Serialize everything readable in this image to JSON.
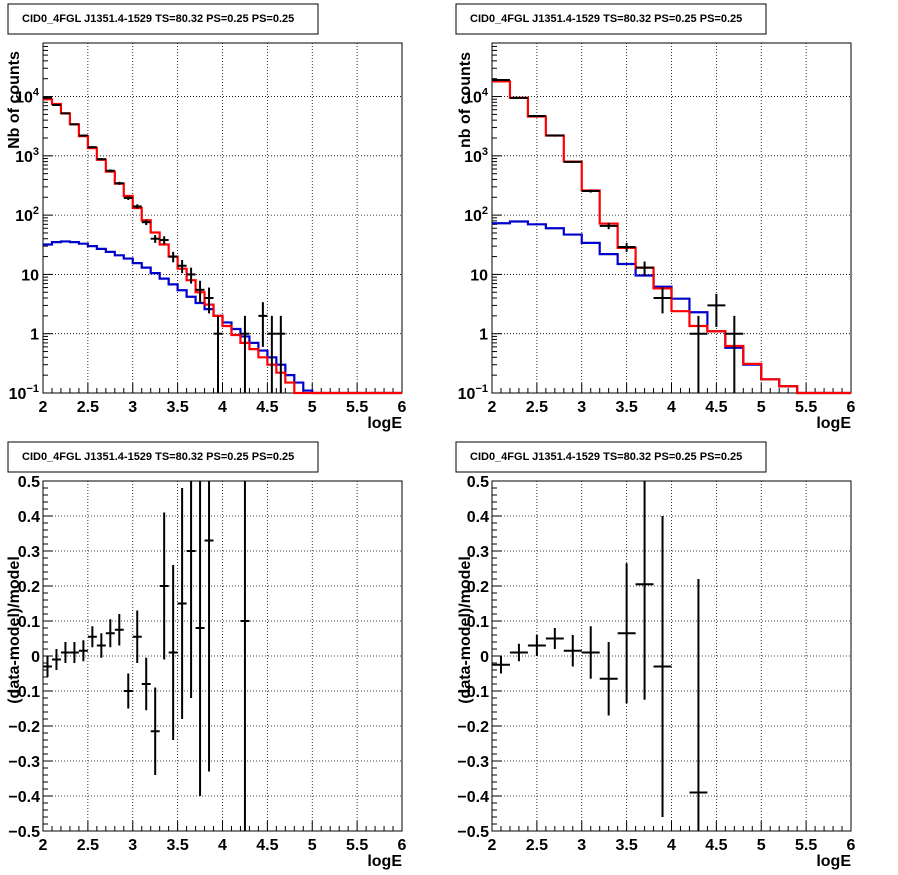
{
  "colors": {
    "data": "#000000",
    "total_model": "#ff0000",
    "component": "#0000cc",
    "grid": "#000000"
  },
  "chart_data": [
    {
      "type": "line",
      "title": "CID0_4FGL J1351.4-1529 TS=80.32 PS=0.25 PS=0.25",
      "xlabel": "logE",
      "ylabel": "Nb of counts",
      "xlim": [
        2,
        6
      ],
      "ylim": [
        0.1,
        80000
      ],
      "yscale": "log",
      "grid": true,
      "xticks": [
        "2",
        "2.5",
        "3",
        "3.5",
        "4",
        "4.5",
        "5",
        "5.5",
        "6"
      ],
      "yticks": [
        {
          "base": "10",
          "exp": "−1",
          "v": 0.1
        },
        {
          "base": "1",
          "exp": "",
          "v": 1
        },
        {
          "base": "10",
          "exp": "",
          "v": 10
        },
        {
          "base": "10",
          "exp": "2",
          "v": 100
        },
        {
          "base": "10",
          "exp": "3",
          "v": 1000
        },
        {
          "base": "10",
          "exp": "4",
          "v": 10000
        }
      ],
      "bin_edges": [
        2.0,
        2.1,
        2.2,
        2.3,
        2.4,
        2.5,
        2.6,
        2.7,
        2.8,
        2.9,
        3.0,
        3.1,
        3.2,
        3.3,
        3.4,
        3.5,
        3.6,
        3.7,
        3.8,
        3.9,
        4.0,
        4.1,
        4.2,
        4.3,
        4.4,
        4.5,
        4.6,
        4.7,
        4.8,
        4.9,
        5.0,
        5.1,
        5.2,
        5.3,
        5.4,
        5.5,
        5.6,
        5.7,
        5.8,
        5.9,
        6.0
      ],
      "series": [
        {
          "role": "total_model",
          "values": [
            9000,
            7500,
            5200,
            3400,
            2150,
            1350,
            860,
            540,
            340,
            210,
            132,
            82,
            51,
            32,
            20,
            12.5,
            8,
            5,
            3.1,
            2.0,
            1.35,
            0.95,
            0.7,
            0.55,
            0.4,
            0.3,
            0.22,
            0.15,
            0.1,
            0.1,
            0.1,
            0.1,
            0.1,
            0.1,
            0.1,
            0.1,
            0.1,
            0.1,
            0.1,
            0.1
          ]
        },
        {
          "role": "component",
          "values": [
            32,
            35,
            36,
            35,
            33,
            30,
            27,
            24,
            21,
            18.5,
            15.5,
            13,
            10.5,
            8.5,
            6.8,
            5.4,
            4.2,
            3.3,
            2.6,
            2.0,
            1.55,
            1.2,
            0.9,
            0.7,
            0.52,
            0.4,
            0.3,
            0.2,
            0.15,
            0.11,
            0.09,
            0.09,
            0.09,
            0.09,
            0.09,
            0.09,
            0.09,
            0.09,
            0.09,
            0.09
          ]
        }
      ],
      "points": [
        {
          "x": 2.05,
          "y": 9500,
          "lo": 9300,
          "hi": 9700
        },
        {
          "x": 2.15,
          "y": 7200,
          "lo": 7050,
          "hi": 7350
        },
        {
          "x": 2.25,
          "y": 5200,
          "lo": 5070,
          "hi": 5330
        },
        {
          "x": 2.35,
          "y": 3400,
          "lo": 3300,
          "hi": 3500
        },
        {
          "x": 2.45,
          "y": 2200,
          "lo": 2120,
          "hi": 2280
        },
        {
          "x": 2.55,
          "y": 1400,
          "lo": 1340,
          "hi": 1460
        },
        {
          "x": 2.65,
          "y": 880,
          "lo": 840,
          "hi": 920
        },
        {
          "x": 2.75,
          "y": 560,
          "lo": 530,
          "hi": 590
        },
        {
          "x": 2.85,
          "y": 345,
          "lo": 325,
          "hi": 365
        },
        {
          "x": 2.95,
          "y": 195,
          "lo": 180,
          "hi": 210
        },
        {
          "x": 3.05,
          "y": 140,
          "lo": 128,
          "hi": 152
        },
        {
          "x": 3.15,
          "y": 76,
          "lo": 68,
          "hi": 84
        },
        {
          "x": 3.25,
          "y": 40,
          "lo": 34,
          "hi": 46
        },
        {
          "x": 3.35,
          "y": 38,
          "lo": 32,
          "hi": 44
        },
        {
          "x": 3.45,
          "y": 20,
          "lo": 16,
          "hi": 24
        },
        {
          "x": 3.55,
          "y": 14,
          "lo": 10.5,
          "hi": 17.5
        },
        {
          "x": 3.65,
          "y": 10,
          "lo": 7,
          "hi": 13
        },
        {
          "x": 3.75,
          "y": 5.5,
          "lo": 3.3,
          "hi": 7.8
        },
        {
          "x": 3.85,
          "y": 4,
          "lo": 2.2,
          "hi": 6
        },
        {
          "x": 3.95,
          "y": 1,
          "lo": 0.1,
          "hi": 2
        },
        {
          "x": 4.25,
          "y": 1,
          "lo": 0.1,
          "hi": 2
        },
        {
          "x": 4.45,
          "y": 2,
          "lo": 0.6,
          "hi": 3.4
        },
        {
          "x": 4.55,
          "y": 1,
          "lo": 0.1,
          "hi": 2
        },
        {
          "x": 4.65,
          "y": 1,
          "lo": 0.1,
          "hi": 2
        }
      ]
    },
    {
      "type": "line",
      "title": "CID0_4FGL J1351.4-1529 TS=80.32 PS=0.25 PS=0.25",
      "xlabel": "logE",
      "ylabel": "nb of counts",
      "xlim": [
        2,
        6
      ],
      "ylim": [
        0.1,
        80000
      ],
      "yscale": "log",
      "grid": true,
      "xticks": [
        "2",
        "2.5",
        "3",
        "3.5",
        "4",
        "4.5",
        "5",
        "5.5",
        "6"
      ],
      "yticks": [
        {
          "base": "10",
          "exp": "−1",
          "v": 0.1
        },
        {
          "base": "1",
          "exp": "",
          "v": 1
        },
        {
          "base": "10",
          "exp": "",
          "v": 10
        },
        {
          "base": "10",
          "exp": "2",
          "v": 100
        },
        {
          "base": "10",
          "exp": "3",
          "v": 1000
        },
        {
          "base": "10",
          "exp": "4",
          "v": 10000
        }
      ],
      "bin_edges": [
        2.0,
        2.2,
        2.4,
        2.6,
        2.8,
        3.0,
        3.2,
        3.4,
        3.6,
        3.8,
        4.0,
        4.2,
        4.4,
        4.6,
        4.8,
        5.0,
        5.2,
        5.4,
        5.6,
        5.8,
        6.0
      ],
      "series": [
        {
          "role": "total_model",
          "values": [
            18000,
            9500,
            4600,
            2200,
            800,
            260,
            72,
            28,
            13,
            5.8,
            2.4,
            1.35,
            1.1,
            0.62,
            0.31,
            0.17,
            0.13,
            0.1,
            0.1,
            0.1
          ]
        },
        {
          "role": "component",
          "values": [
            73,
            78,
            70,
            60,
            47,
            34,
            22,
            15,
            9.6,
            6.2,
            3.9,
            2.3,
            1.1,
            0.58,
            0.3,
            0.17,
            0.13,
            0.1,
            0.1,
            0.1
          ]
        }
      ],
      "points": [
        {
          "x": 2.1,
          "y": 19000,
          "lo": 18700,
          "hi": 19300
        },
        {
          "x": 2.3,
          "y": 9500,
          "lo": 9300,
          "hi": 9700
        },
        {
          "x": 2.5,
          "y": 4700,
          "lo": 4560,
          "hi": 4840
        },
        {
          "x": 2.7,
          "y": 2200,
          "lo": 2110,
          "hi": 2290
        },
        {
          "x": 2.9,
          "y": 790,
          "lo": 760,
          "hi": 820
        },
        {
          "x": 3.1,
          "y": 255,
          "lo": 240,
          "hi": 270
        },
        {
          "x": 3.3,
          "y": 66,
          "lo": 58,
          "hi": 74
        },
        {
          "x": 3.5,
          "y": 29,
          "lo": 24,
          "hi": 34
        },
        {
          "x": 3.7,
          "y": 13,
          "lo": 9.5,
          "hi": 16.5
        },
        {
          "x": 3.9,
          "y": 4,
          "lo": 2.2,
          "hi": 6
        },
        {
          "x": 4.3,
          "y": 1,
          "lo": 0.1,
          "hi": 2
        },
        {
          "x": 4.5,
          "y": 3,
          "lo": 1.3,
          "hi": 4.7
        },
        {
          "x": 4.7,
          "y": 1,
          "lo": 0.1,
          "hi": 2
        }
      ]
    },
    {
      "type": "scatter",
      "title": "CID0_4FGL J1351.4-1529 TS=80.32 PS=0.25 PS=0.25",
      "xlabel": "logE",
      "ylabel": "(data-model)/model",
      "xlim": [
        2,
        6
      ],
      "ylim": [
        -0.5,
        0.5
      ],
      "grid": true,
      "xticks": [
        "2",
        "2.5",
        "3",
        "3.5",
        "4",
        "4.5",
        "5",
        "5.5",
        "6"
      ],
      "yticks": [
        "−0.5",
        "−0.4",
        "−0.3",
        "−0.2",
        "−0.1",
        "0",
        "0.1",
        "0.2",
        "0.3",
        "0.4",
        "0.5"
      ],
      "points": [
        {
          "x": 2.05,
          "y": -0.03,
          "err": 0.03
        },
        {
          "x": 2.15,
          "y": -0.01,
          "err": 0.03
        },
        {
          "x": 2.25,
          "y": 0.01,
          "err": 0.03
        },
        {
          "x": 2.35,
          "y": 0.01,
          "err": 0.03
        },
        {
          "x": 2.45,
          "y": 0.015,
          "err": 0.03
        },
        {
          "x": 2.55,
          "y": 0.055,
          "err": 0.03
        },
        {
          "x": 2.65,
          "y": 0.03,
          "err": 0.035
        },
        {
          "x": 2.75,
          "y": 0.065,
          "err": 0.04
        },
        {
          "x": 2.85,
          "y": 0.075,
          "err": 0.045
        },
        {
          "x": 2.95,
          "y": -0.1,
          "err": 0.05
        },
        {
          "x": 3.05,
          "y": 0.055,
          "err": 0.075
        },
        {
          "x": 3.15,
          "y": -0.08,
          "err": 0.075
        },
        {
          "x": 3.25,
          "y": -0.215,
          "err": 0.125
        },
        {
          "x": 3.35,
          "y": 0.2,
          "err": 0.21
        },
        {
          "x": 3.45,
          "y": 0.01,
          "err": 0.25
        },
        {
          "x": 3.55,
          "y": 0.15,
          "err": 0.33
        },
        {
          "x": 3.65,
          "y": 0.3,
          "err": 0.42
        },
        {
          "x": 3.75,
          "y": 0.08,
          "err": 0.48
        },
        {
          "x": 3.85,
          "y": 0.33,
          "err": 0.66
        },
        {
          "x": 4.25,
          "y": 0.1,
          "err": 1.1
        }
      ]
    },
    {
      "type": "scatter",
      "title": "CID0_4FGL J1351.4-1529 TS=80.32 PS=0.25 PS=0.25",
      "xlabel": "logE",
      "ylabel": "(data-model)/model",
      "xlim": [
        2,
        6
      ],
      "ylim": [
        -0.5,
        0.5
      ],
      "grid": true,
      "xticks": [
        "2",
        "2.5",
        "3",
        "3.5",
        "4",
        "4.5",
        "5",
        "5.5",
        "6"
      ],
      "yticks": [
        "−0.5",
        "−0.4",
        "−0.3",
        "−0.2",
        "−0.1",
        "0",
        "0.1",
        "0.2",
        "0.3",
        "0.4",
        "0.5"
      ],
      "points": [
        {
          "x": 2.1,
          "y": -0.025,
          "err": 0.025
        },
        {
          "x": 2.3,
          "y": 0.01,
          "err": 0.025
        },
        {
          "x": 2.5,
          "y": 0.03,
          "err": 0.03
        },
        {
          "x": 2.7,
          "y": 0.05,
          "err": 0.03
        },
        {
          "x": 2.9,
          "y": 0.015,
          "err": 0.045
        },
        {
          "x": 3.1,
          "y": 0.01,
          "err": 0.075
        },
        {
          "x": 3.3,
          "y": -0.065,
          "err": 0.105
        },
        {
          "x": 3.5,
          "y": 0.065,
          "err": 0.2
        },
        {
          "x": 3.7,
          "y": 0.205,
          "err": 0.33
        },
        {
          "x": 3.9,
          "y": -0.03,
          "err": 0.43
        },
        {
          "x": 4.3,
          "y": -0.39,
          "err": 0.61
        }
      ]
    }
  ]
}
